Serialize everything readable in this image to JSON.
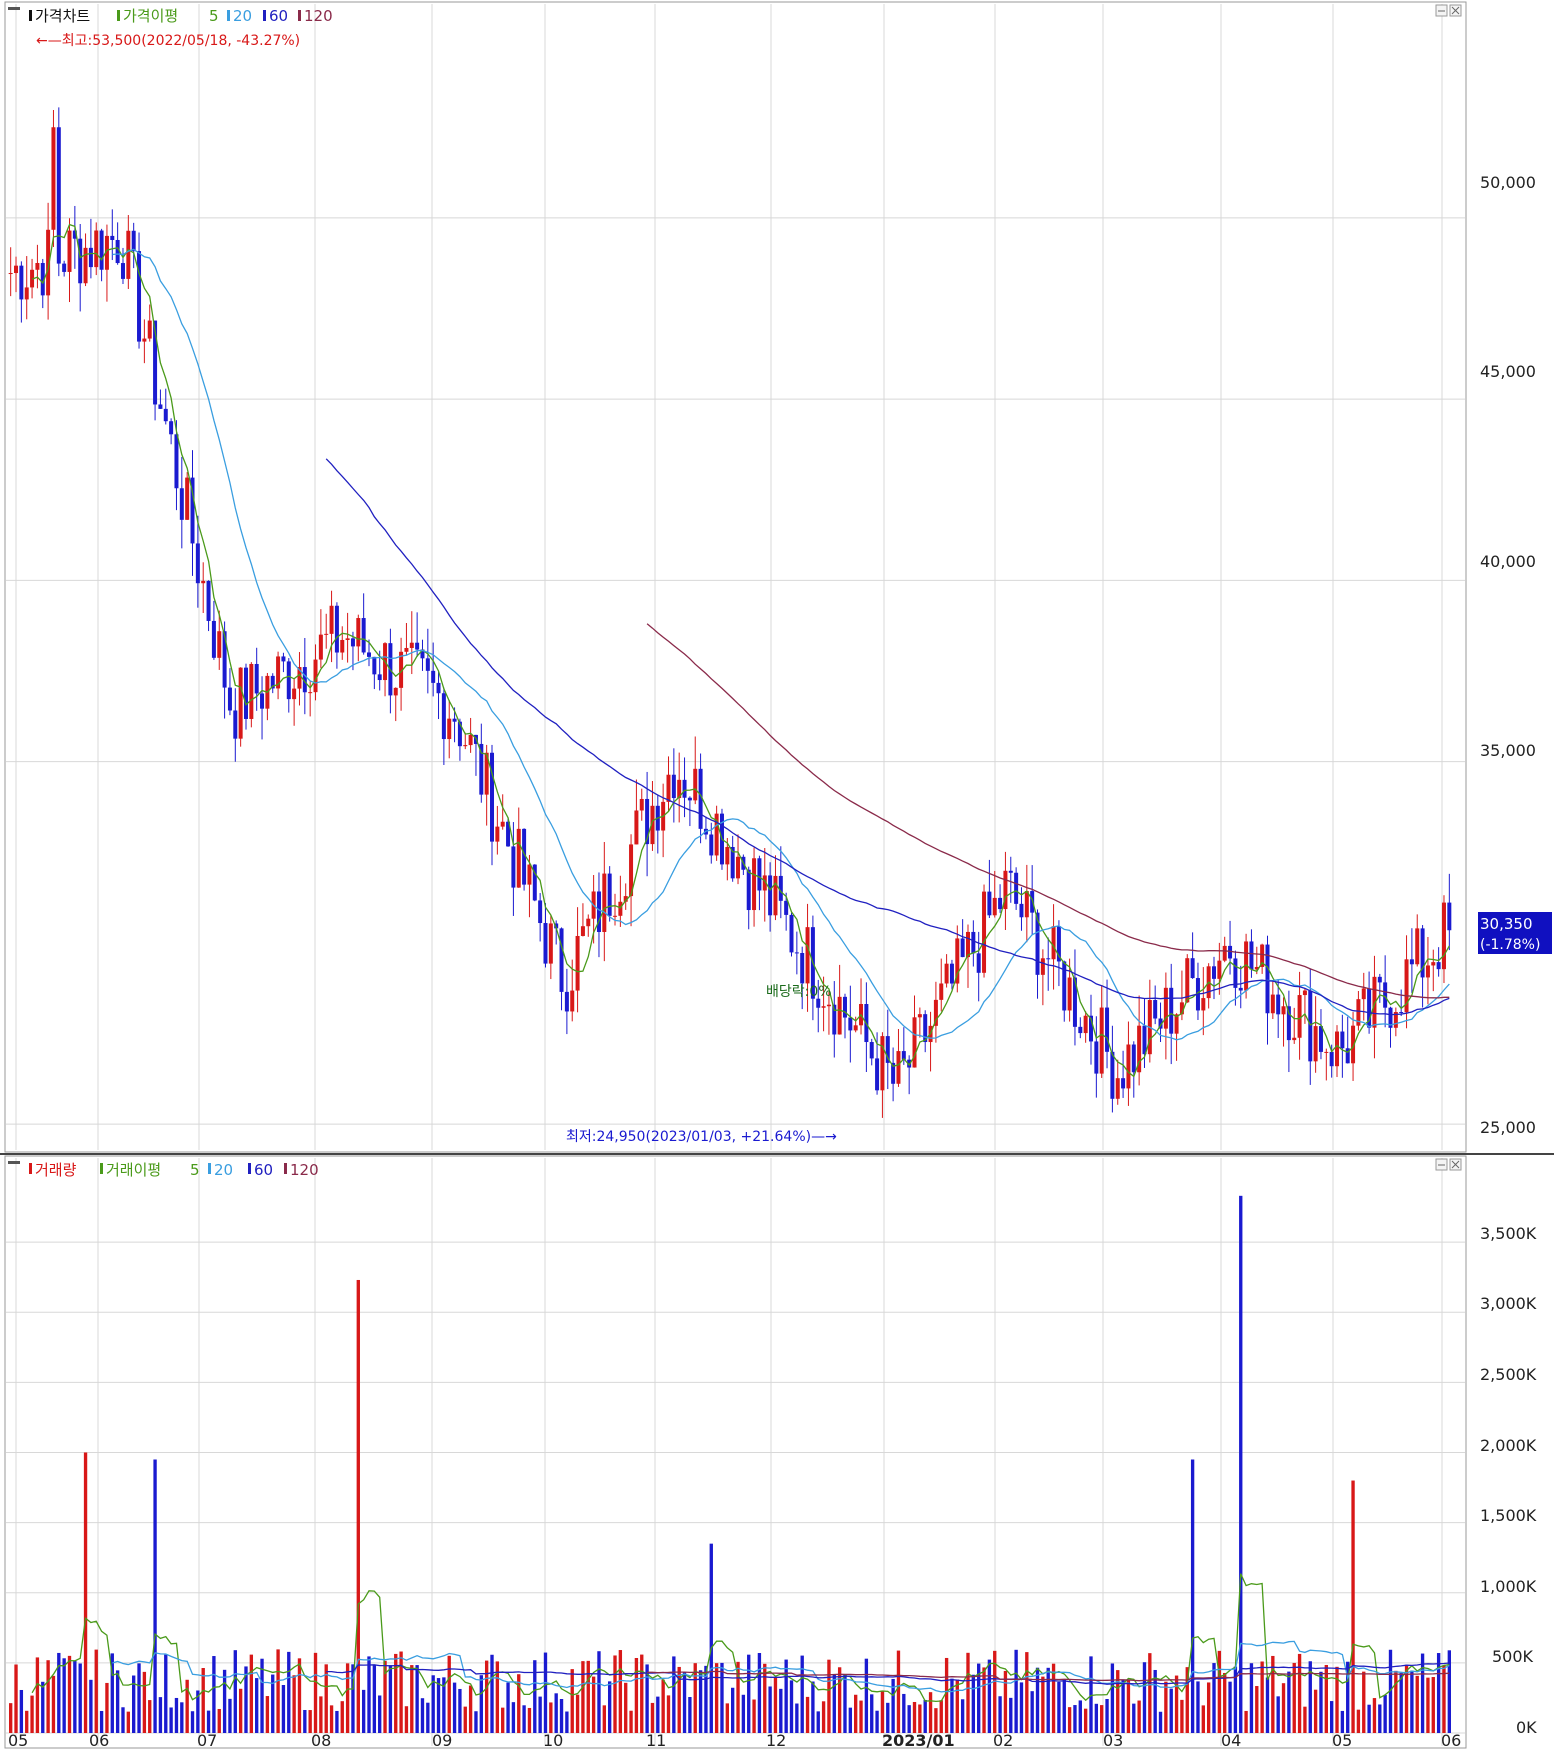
{
  "colors": {
    "up": "#d81818",
    "down": "#1a1ad0",
    "ma5": "#4a9a1a",
    "ma20": "#3a9ee0",
    "ma60": "#2020c0",
    "ma120": "#8a2a4a",
    "grid": "#d8d8d8",
    "badge_bg": "#1010c0"
  },
  "price_panel": {
    "title": "가격차트",
    "legend_prefix": "가격이평",
    "ma_periods": [
      "5",
      "20",
      "60",
      "120"
    ],
    "high_note": "←—최고:53,500(2022/05/18, -43.27%)",
    "low_note": "최저:24,950(2023/01/03, +21.64%)—→",
    "dividend_note": "배당락:0%",
    "current_price": "30,350",
    "current_change": "(-1.78%)",
    "y_ticks": [
      "50,000",
      "45,000",
      "40,000",
      "35,000",
      "25,000"
    ],
    "y_tick_values": [
      50000,
      45000,
      40000,
      35000,
      25000
    ]
  },
  "volume_panel": {
    "title": "거래량",
    "legend_prefix": "거래이평",
    "ma_periods": [
      "5",
      "20",
      "60",
      "120"
    ],
    "y_ticks": [
      "3,500K",
      "3,000K",
      "2,500K",
      "2,000K",
      "1,500K",
      "1,000K",
      "500K",
      "0K"
    ],
    "y_tick_values": [
      3500,
      3000,
      2500,
      2000,
      1500,
      1000,
      500,
      0
    ]
  },
  "x_axis": {
    "labels": [
      "05",
      "06",
      "07",
      "08",
      "09",
      "10",
      "11",
      "12",
      "2023/01",
      "02",
      "03",
      "04",
      "05",
      "06"
    ]
  },
  "chart_data": [
    {
      "type": "candlestick",
      "title": "가격차트",
      "x": [
        "2022/05",
        "2022/06",
        "2022/07",
        "2022/08",
        "2022/09",
        "2022/10",
        "2022/11",
        "2022/12",
        "2023/01",
        "2023/02",
        "2023/03",
        "2023/04",
        "2023/05",
        "2023/06"
      ],
      "close_anchor_points": [
        48500,
        49500,
        36500,
        38500,
        36500,
        29000,
        35000,
        30500,
        26000,
        31500,
        26500,
        30000,
        27000,
        30350
      ],
      "high": 53500,
      "low": 24950,
      "current": 30350,
      "change_pct": -1.78,
      "ylim": [
        24700,
        54000
      ],
      "series": [
        {
          "name": "5",
          "role": "moving average"
        },
        {
          "name": "20",
          "role": "moving average"
        },
        {
          "name": "60",
          "role": "moving average"
        },
        {
          "name": "120",
          "role": "moving average"
        }
      ]
    },
    {
      "type": "bar",
      "title": "거래량",
      "unit": "K",
      "notable_peaks": [
        {
          "x": "2022/06",
          "value": 2000
        },
        {
          "x": "2022/06",
          "value": 1950
        },
        {
          "x": "2022/07",
          "value": 3230
        },
        {
          "x": "2022/11",
          "value": 1350
        },
        {
          "x": "2023/03",
          "value": 3830
        },
        {
          "x": "2023/03",
          "value": 1950
        },
        {
          "x": "2023/05",
          "value": 1800
        }
      ],
      "ylim": [
        0,
        3900
      ],
      "series": [
        {
          "name": "5",
          "role": "moving average"
        },
        {
          "name": "20",
          "role": "moving average"
        },
        {
          "name": "60",
          "role": "moving average"
        },
        {
          "name": "120",
          "role": "moving average"
        }
      ]
    }
  ]
}
